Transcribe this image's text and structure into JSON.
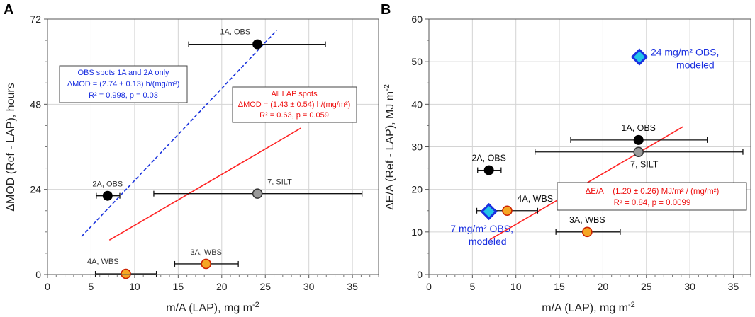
{
  "colors": {
    "obs": "#000000",
    "silt": "#999999",
    "wbs_fill": "#f5a623",
    "wbs_edge": "#cc2200",
    "fit_all": "#ff2222",
    "fit_obs": "#1a33dd",
    "modeled_fill": "#21c4e8",
    "modeled_edge": "#1a2fe0",
    "text_blue": "#1a2fe0",
    "text_red": "#ee1111"
  },
  "chart_data": [
    {
      "panel": "A",
      "type": "scatter",
      "xlabel": "m/A (LAP), mg m",
      "xlabel_sup": "-2",
      "ylabel": "ΔMOD (Ref - LAP), hours",
      "xlim": [
        0,
        38
      ],
      "ylim": [
        0,
        72
      ],
      "xticks": [
        0,
        5,
        10,
        15,
        20,
        25,
        30,
        35
      ],
      "yticks": [
        0,
        24,
        48,
        72
      ],
      "xminor": 1,
      "yminor": 6,
      "points": [
        {
          "id": "1A",
          "label": "1A, OBS",
          "x": 24.1,
          "y": 64.9,
          "xerr": [
            16.2,
            31.9
          ],
          "kind": "obs",
          "label_pos": "above-left"
        },
        {
          "id": "2A",
          "label": "2A, OBS",
          "x": 6.9,
          "y": 22.2,
          "xerr": [
            5.6,
            8.3
          ],
          "kind": "obs",
          "label_pos": "above"
        },
        {
          "id": "7",
          "label": "7, SILT",
          "x": 24.1,
          "y": 22.8,
          "xerr": [
            12.2,
            36.1
          ],
          "kind": "silt",
          "label_pos": "above-right"
        },
        {
          "id": "3A",
          "label": "3A, WBS",
          "x": 18.2,
          "y": 3.0,
          "xerr": [
            14.6,
            21.9
          ],
          "kind": "wbs",
          "label_pos": "above"
        },
        {
          "id": "4A",
          "label": "4A, WBS",
          "x": 9.0,
          "y": 0.2,
          "xerr": [
            5.5,
            12.5
          ],
          "kind": "wbs",
          "label_pos": "above-left"
        }
      ],
      "lines": [
        {
          "name": "OBS fit",
          "style": "dashed",
          "colorKey": "fit_obs",
          "x": [
            3.9,
            26.3
          ],
          "y": [
            10.7,
            68.8
          ]
        },
        {
          "name": "All LAP fit",
          "style": "solid",
          "colorKey": "fit_all",
          "x": [
            7.1,
            29.1
          ],
          "y": [
            9.7,
            41.3
          ]
        }
      ],
      "annotations": [
        {
          "id": "obs",
          "colorKey": "text_blue",
          "lines": [
            "OBS spots 1A and 2A only",
            "ΔMOD = (2.74 ± 0.13) h/(mg/m²)",
            "R² = 0.998, p = 0.03"
          ]
        },
        {
          "id": "all",
          "colorKey": "text_red",
          "lines": [
            "All LAP spots",
            "ΔMOD = (1.43 ± 0.54) h/(mg/m²)",
            "R² = 0.63, p = 0.059"
          ]
        }
      ]
    },
    {
      "panel": "B",
      "type": "scatter",
      "xlabel": "m/A (LAP), mg m",
      "xlabel_sup": "-2",
      "ylabel": "ΔE/A (Ref - LAP), MJ m",
      "ylabel_sup": "-2",
      "xlim": [
        0,
        37
      ],
      "ylim": [
        0,
        60
      ],
      "xticks": [
        0,
        5,
        10,
        15,
        20,
        25,
        30,
        35
      ],
      "yticks": [
        0,
        10,
        20,
        30,
        40,
        50,
        60
      ],
      "xminor": 1,
      "yminor": 5,
      "points": [
        {
          "id": "1A",
          "label": "1A, OBS",
          "x": 24.1,
          "y": 31.6,
          "xerr": [
            16.3,
            32.0
          ],
          "kind": "obs",
          "label_pos": "above"
        },
        {
          "id": "7",
          "label": "7, SILT",
          "x": 24.1,
          "y": 28.8,
          "xerr": [
            12.2,
            36.1
          ],
          "kind": "silt",
          "label_pos": "below"
        },
        {
          "id": "2A",
          "label": "2A, OBS",
          "x": 6.9,
          "y": 24.5,
          "xerr": [
            5.6,
            8.3
          ],
          "kind": "obs",
          "label_pos": "above"
        },
        {
          "id": "4A",
          "label": "4A, WBS",
          "x": 9.0,
          "y": 15.0,
          "xerr": [
            5.5,
            12.5
          ],
          "kind": "wbs",
          "label_pos": "above-right"
        },
        {
          "id": "3A",
          "label": "3A, WBS",
          "x": 18.2,
          "y": 10.0,
          "xerr": [
            14.6,
            22.0
          ],
          "kind": "wbs",
          "label_pos": "above"
        },
        {
          "id": "M24",
          "label": "24 mg/m² OBS,",
          "label2": "modeled",
          "x": 24.2,
          "y": 51.1,
          "kind": "modeled",
          "label_pos": "right"
        },
        {
          "id": "M7",
          "label": "7 mg/m² OBS,",
          "label2": "modeled",
          "x": 6.9,
          "y": 14.8,
          "kind": "modeled",
          "label_pos": "below-left"
        }
      ],
      "lines": [
        {
          "name": "All LAP fit",
          "style": "solid",
          "colorKey": "fit_all",
          "x": [
            7.0,
            29.2
          ],
          "y": [
            8.2,
            34.7
          ]
        }
      ],
      "annotations": [
        {
          "id": "all",
          "colorKey": "text_red",
          "lines": [
            "ΔE/A = (1.20 ± 0.26) MJ/m² / (mg/m²)",
            "R² = 0.84, p = 0.0099"
          ]
        }
      ]
    }
  ]
}
